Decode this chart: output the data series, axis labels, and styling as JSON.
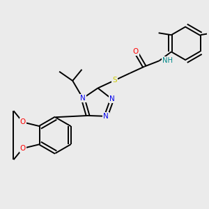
{
  "bg_color": "#ebebeb",
  "bond_color": "#000000",
  "atom_colors": {
    "N": "#0000ee",
    "O": "#ff0000",
    "S": "#cccc00",
    "H": "#008888",
    "C": "#000000"
  },
  "line_width": 1.4,
  "font_size": 7.5
}
